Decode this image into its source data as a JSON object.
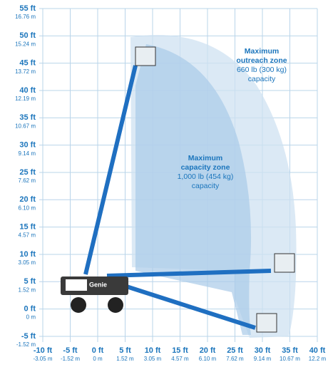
{
  "y_axis": {
    "ticks": [
      {
        "ft": "55 ft",
        "m": "16.76 m"
      },
      {
        "ft": "50 ft",
        "m": "15.24 m"
      },
      {
        "ft": "45 ft",
        "m": "13.72 m"
      },
      {
        "ft": "40 ft",
        "m": "12.19 m"
      },
      {
        "ft": "35 ft",
        "m": "10.67 m"
      },
      {
        "ft": "30 ft",
        "m": "9.14 m"
      },
      {
        "ft": "25 ft",
        "m": "7.62 m"
      },
      {
        "ft": "20 ft",
        "m": "6.10 m"
      },
      {
        "ft": "15 ft",
        "m": "4.57 m"
      },
      {
        "ft": "10 ft",
        "m": "3.05 m"
      },
      {
        "ft": "5 ft",
        "m": "1.52 m"
      },
      {
        "ft": "0 ft",
        "m": "0 m"
      },
      {
        "ft": "-5 ft",
        "m": "-1.52 m"
      }
    ]
  },
  "x_axis": {
    "ticks": [
      {
        "ft": "-10 ft",
        "m": "-3.05 m"
      },
      {
        "ft": "-5 ft",
        "m": "-1.52 m"
      },
      {
        "ft": "0 ft",
        "m": "0 m"
      },
      {
        "ft": "5 ft",
        "m": "1.52 m"
      },
      {
        "ft": "10 ft",
        "m": "3.05 m"
      },
      {
        "ft": "15 ft",
        "m": "4.57 m"
      },
      {
        "ft": "20 ft",
        "m": "6.10 m"
      },
      {
        "ft": "25 ft",
        "m": "7.62 m"
      },
      {
        "ft": "30 ft",
        "m": "9.14 m"
      },
      {
        "ft": "35 ft",
        "m": "10.67 m"
      },
      {
        "ft": "40 ft",
        "m": "12.2 m"
      }
    ]
  },
  "zones": {
    "capacity": {
      "title": [
        "Maximum",
        "capacity zone"
      ],
      "detail": [
        "1,000 lb (454 kg)",
        "capacity"
      ]
    },
    "outreach": {
      "title": [
        "Maximum",
        "outreach zone"
      ],
      "detail": [
        "660 lb (300 kg)",
        "capacity"
      ]
    }
  },
  "machine": {
    "brand": "Genie"
  }
}
